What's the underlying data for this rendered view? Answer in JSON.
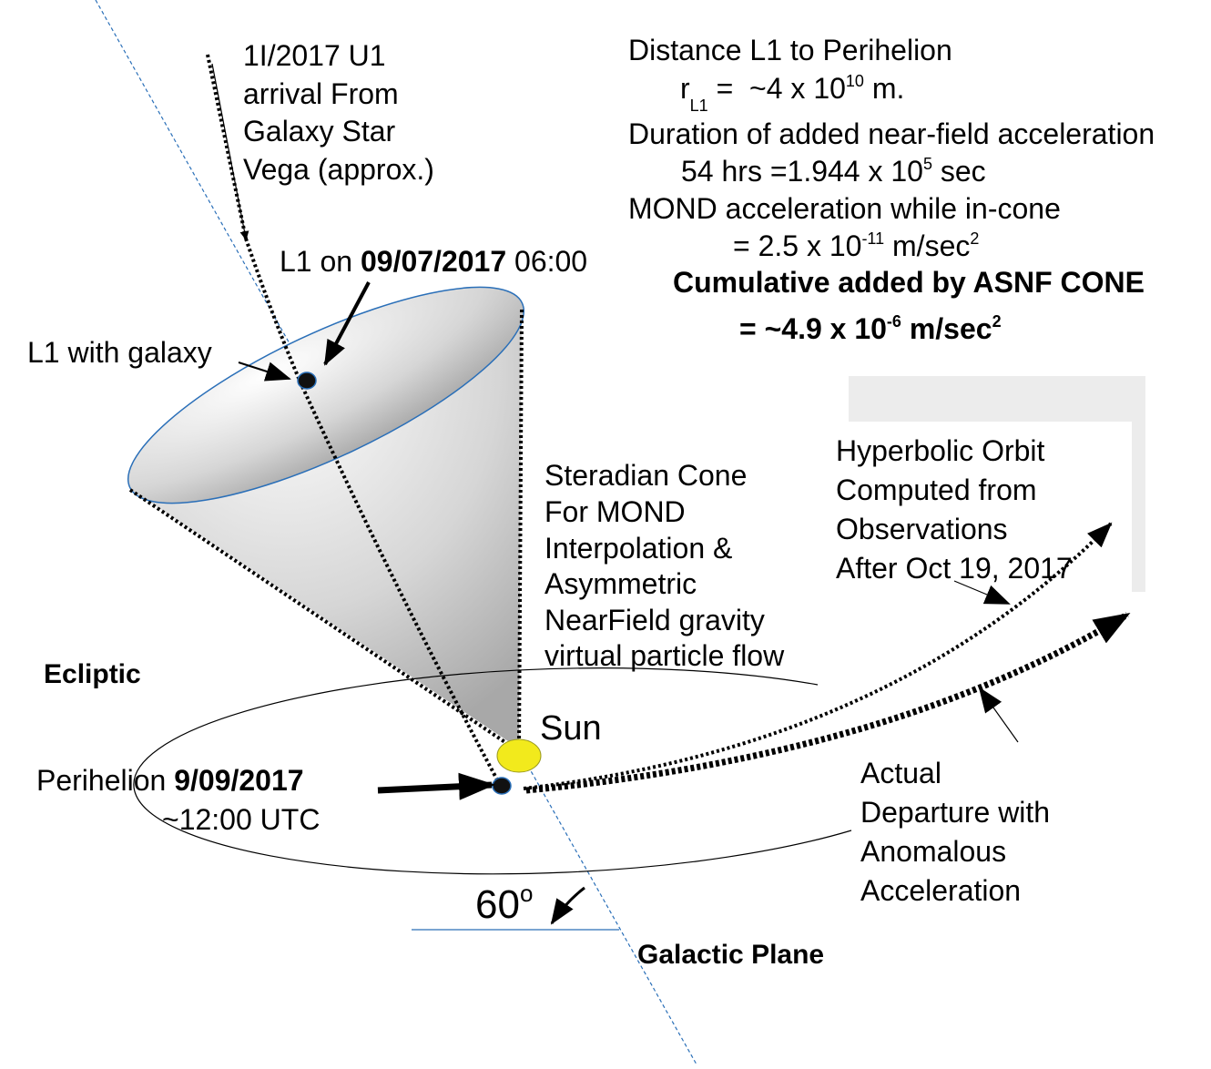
{
  "incoming_label": {
    "lines": [
      "1I/2017 U1",
      "arrival From",
      "Galaxy Star",
      "Vega (approx.)"
    ]
  },
  "l1_date_label": {
    "prefix": "L1 on ",
    "date": "09/07/2017",
    "time": " 06:00"
  },
  "l1_galaxy_label": "L1 with galaxy",
  "info": {
    "distance_title": "Distance L1 to Perihelion",
    "distance_symbol": "r",
    "distance_subscript": "L1",
    "distance_value": " =  ~4 x 10",
    "distance_exponent": "10",
    "distance_unit": " m.",
    "duration_title": "Duration of added near-field acceleration",
    "duration_value": "54 hrs =1.944 x 10",
    "duration_exponent": "5",
    "duration_unit": " sec",
    "mond_title": "MOND acceleration while in-cone",
    "mond_value": "= 2.5 x 10",
    "mond_exponent": "-11",
    "mond_unit": " m/sec",
    "mond_unit_exponent": "2",
    "cumulative_title": "Cumulative added by ASNF CONE",
    "cumulative_value": "= ~4.9 x 10",
    "cumulative_exponent": "-6",
    "cumulative_unit": " m/sec",
    "cumulative_unit_exponent": "2"
  },
  "cone_label": {
    "lines": [
      "Steradian Cone",
      "For MOND",
      "Interpolation &",
      "Asymmetric",
      "NearField gravity",
      "virtual particle flow"
    ]
  },
  "hyperbolic_label": {
    "lines": [
      "Hyperbolic Orbit",
      "Computed from",
      "Observations",
      "After Oct 19, 2017"
    ]
  },
  "ecliptic_label": "Ecliptic",
  "sun_label": "Sun",
  "perihelion_label": {
    "prefix": "Perihelion ",
    "date": "9/09/2017",
    "time": "~12:00 UTC"
  },
  "actual_label": {
    "lines": [
      "Actual",
      "Departure with",
      "Anomalous",
      "Acceleration"
    ]
  },
  "angle_label": {
    "value": "60",
    "unit": "o"
  },
  "galactic_plane_label": "Galactic Plane"
}
